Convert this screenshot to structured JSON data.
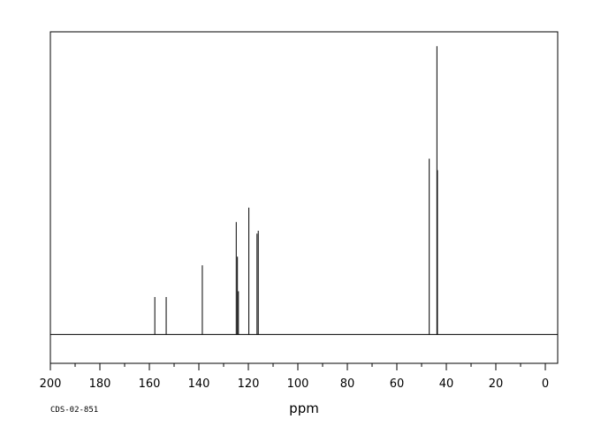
{
  "chart_data": {
    "type": "line",
    "title": "",
    "xlabel": "ppm",
    "ylabel": "",
    "xlim": [
      200,
      -5
    ],
    "ylim": [
      -0.1,
      1.05
    ],
    "x_reversed": true,
    "grid": false,
    "x_ticks": [
      200,
      180,
      160,
      140,
      120,
      100,
      80,
      60,
      40,
      20,
      0
    ],
    "x_tick_labels": [
      "200",
      "180",
      "160",
      "140",
      "120",
      "100",
      "80",
      "60",
      "40",
      "20",
      "0"
    ],
    "peaks": [
      {
        "x": 157.8,
        "y": 0.13
      },
      {
        "x": 153.2,
        "y": 0.13
      },
      {
        "x": 138.6,
        "y": 0.24
      },
      {
        "x": 124.9,
        "y": 0.39
      },
      {
        "x": 124.4,
        "y": 0.27
      },
      {
        "x": 124.0,
        "y": 0.15
      },
      {
        "x": 119.8,
        "y": 0.44
      },
      {
        "x": 116.5,
        "y": 0.35
      },
      {
        "x": 116.0,
        "y": 0.36
      },
      {
        "x": 46.9,
        "y": 0.61
      },
      {
        "x": 43.8,
        "y": 1.0
      },
      {
        "x": 43.6,
        "y": 0.57
      }
    ],
    "annotation": "CDS-02-851"
  }
}
